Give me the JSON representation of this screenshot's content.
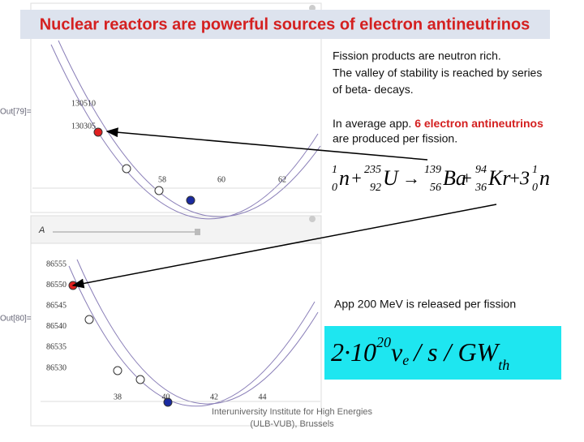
{
  "header": {
    "title": "Nuclear reactors are powerful sources of electron antineutrinos"
  },
  "plots": [
    {
      "out_label": "Out[79]=",
      "y_ticks": [
        "130510",
        "130305"
      ],
      "x_ticks": [
        "58",
        "60",
        "62"
      ]
    },
    {
      "out_label": "Out[80]=",
      "y_ticks": [
        "86555",
        "86550",
        "86545",
        "86540",
        "86535",
        "86530"
      ],
      "x_ticks": [
        "38",
        "40",
        "42",
        "44"
      ]
    }
  ],
  "slider": {
    "label": "A"
  },
  "text": {
    "lines": [
      "Fission products are neutron rich.",
      "The valley of stability is reached by series",
      "of beta- decays."
    ],
    "line4_start": "In average app.",
    "line4_highlight": "6 electron antineutrinos",
    "line5": "are produced per fission."
  },
  "equation": {
    "terms": [
      {
        "symbol": "n",
        "mass": "1",
        "charge": "0"
      },
      {
        "symbol": "U",
        "mass": "235",
        "charge": "92"
      },
      {
        "symbol": "Ba",
        "mass": "139",
        "charge": "56"
      },
      {
        "symbol": "Kr",
        "mass": "94",
        "charge": "36"
      },
      {
        "symbol": "n",
        "mass": "1",
        "charge": "0"
      }
    ],
    "coefficient": "3"
  },
  "energy_note": "App 200 MeV is released per fission",
  "formula": {
    "base": "2·10",
    "exponent": "20",
    "nu": "ν",
    "nu_sub": "e",
    "rest": "/ s / GW",
    "rest_sub": "th"
  },
  "footer": [
    "Interuniversity Institute for High Energies",
    "(ULB-VUB), Brussels"
  ]
}
